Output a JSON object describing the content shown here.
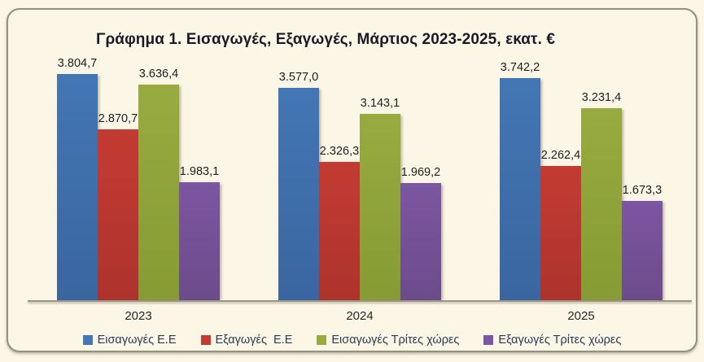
{
  "chart_data": {
    "type": "bar",
    "title": "Γράφημα 1. Εισαγωγές, Εξαγωγές, Μάρτιος 2023-2025, εκατ. €",
    "categories": [
      "2023",
      "2024",
      "2025"
    ],
    "series": [
      {
        "name": "Εισαγωγές Ε.Ε",
        "color": "#4376b4",
        "color_dark": "#3a66a0",
        "values": [
          3804.7,
          3577.0,
          3742.2
        ],
        "labels": [
          "3.804,7",
          "3.577,0",
          "3.742,2"
        ]
      },
      {
        "name": "Εξαγωγές  Ε.Ε",
        "color": "#c33b33",
        "color_dark": "#ad332c",
        "values": [
          2870.7,
          2326.3,
          2262.4
        ],
        "labels": [
          "2.870,7",
          "2.326,3",
          "2.262,4"
        ]
      },
      {
        "name": "Εισαγωγές Τρίτες χώρες",
        "color": "#97ab40",
        "color_dark": "#869b33",
        "values": [
          3636.4,
          3143.1,
          3231.4
        ],
        "labels": [
          "3.636,4",
          "3.143,1",
          "3.231,4"
        ]
      },
      {
        "name": "Εξαγωγές Τρίτες χώρες",
        "color": "#7c56a1",
        "color_dark": "#6c4b8b",
        "values": [
          1983.1,
          1969.2,
          1673.3
        ],
        "labels": [
          "1.983,1",
          "1.969,2",
          "1.673,3"
        ]
      }
    ],
    "ylim": [
      0,
      4000
    ],
    "xlabel": "",
    "ylabel": "",
    "grid": false,
    "value_labels_shown": true,
    "legend_position": "bottom",
    "background_color": "#fcf6e6",
    "frame_border_color": "#95907d",
    "axis_line_color": "#9a9585"
  }
}
